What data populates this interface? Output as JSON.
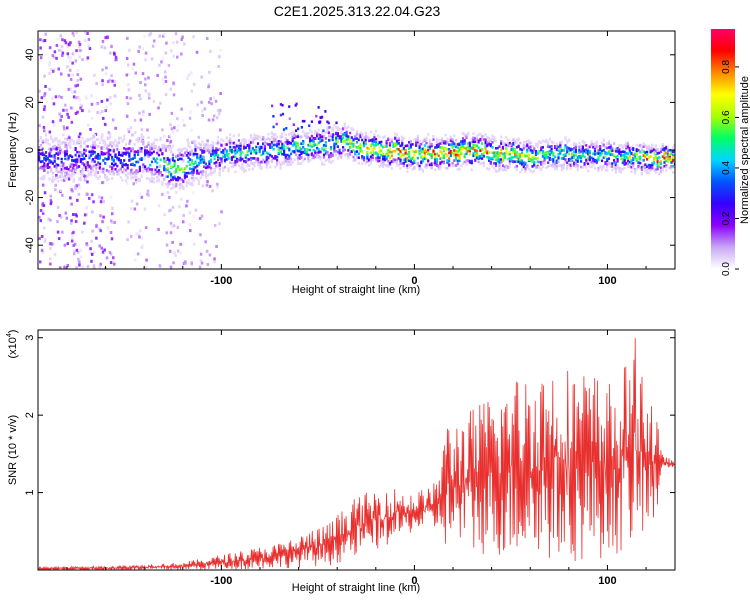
{
  "figure": {
    "title": "C2E1.2025.313.22.04.G23"
  },
  "chart_data": [
    {
      "type": "heatmap",
      "name": "spectrogram",
      "xlabel": "Height of straight line (km)",
      "ylabel": "Frequency (Hz)",
      "xlim": [
        -195,
        135
      ],
      "ylim": [
        -50,
        50
      ],
      "x_ticks": [
        -100,
        0,
        100
      ],
      "y_ticks": [
        -40,
        -20,
        0,
        20,
        40
      ],
      "ridge": [
        {
          "x": -190,
          "y": -3,
          "amp": 0.35
        },
        {
          "x": -170,
          "y": -3,
          "amp": 0.35
        },
        {
          "x": -150,
          "y": -3,
          "amp": 0.4
        },
        {
          "x": -135,
          "y": -3,
          "amp": 0.45
        },
        {
          "x": -125,
          "y": -8,
          "amp": 0.75
        },
        {
          "x": -110,
          "y": -3,
          "amp": 0.45
        },
        {
          "x": -95,
          "y": -1,
          "amp": 0.5
        },
        {
          "x": -80,
          "y": 0,
          "amp": 0.55
        },
        {
          "x": -65,
          "y": 1,
          "amp": 0.55
        },
        {
          "x": -50,
          "y": 2,
          "amp": 0.6
        },
        {
          "x": -38,
          "y": 4,
          "amp": 0.65
        },
        {
          "x": -25,
          "y": 1,
          "amp": 0.8
        },
        {
          "x": -10,
          "y": 0,
          "amp": 0.85
        },
        {
          "x": 0,
          "y": -1,
          "amp": 0.85
        },
        {
          "x": 15,
          "y": -1,
          "amp": 0.9
        },
        {
          "x": 30,
          "y": 0,
          "amp": 0.85
        },
        {
          "x": 45,
          "y": -1,
          "amp": 0.75
        },
        {
          "x": 60,
          "y": -2,
          "amp": 0.7
        },
        {
          "x": 75,
          "y": -1,
          "amp": 0.65
        },
        {
          "x": 90,
          "y": -2,
          "amp": 0.55
        },
        {
          "x": 105,
          "y": -2,
          "amp": 0.6
        },
        {
          "x": 120,
          "y": -3,
          "amp": 0.85
        },
        {
          "x": 133,
          "y": -3,
          "amp": 0.9
        }
      ],
      "colorbar": {
        "label": "Normalized spectral amplitude",
        "ticks": [
          0.0,
          0.2,
          0.4,
          0.6,
          0.8
        ],
        "tick_labels": [
          "0.0",
          "0.2",
          "0.4",
          "0.6",
          "0.8"
        ],
        "range": [
          0,
          0.95
        ],
        "stops": [
          "#ffffff",
          "#c9a7f6",
          "#8b00ff",
          "#3300ff",
          "#0055ff",
          "#00d5ff",
          "#00ff66",
          "#a8ff00",
          "#ffff00",
          "#ff8800",
          "#ff0000",
          "#ff0066"
        ]
      }
    },
    {
      "type": "line",
      "name": "snr",
      "xlabel": "Height of straight line (km)",
      "ylabel": "SNR (10 * v/v)",
      "scale_label": "(x10",
      "scale_exp": "4",
      "scale_close": ")",
      "xlim": [
        -195,
        135
      ],
      "ylim": [
        0,
        3.1
      ],
      "x_ticks": [
        -100,
        0,
        100
      ],
      "y_ticks": [
        1,
        2,
        3
      ],
      "color": "#e8302e",
      "envelope": [
        {
          "x": -195,
          "lo": 0.0,
          "hi": 0.04
        },
        {
          "x": -160,
          "lo": 0.0,
          "hi": 0.05
        },
        {
          "x": -120,
          "lo": 0.0,
          "hi": 0.1
        },
        {
          "x": -100,
          "lo": 0.0,
          "hi": 0.2
        },
        {
          "x": -70,
          "lo": 0.02,
          "hi": 0.35
        },
        {
          "x": -45,
          "lo": 0.05,
          "hi": 0.6
        },
        {
          "x": -30,
          "lo": 0.15,
          "hi": 0.95
        },
        {
          "x": -15,
          "lo": 0.3,
          "hi": 1.1
        },
        {
          "x": 0,
          "lo": 0.5,
          "hi": 1.0
        },
        {
          "x": 12,
          "lo": 0.5,
          "hi": 1.15
        },
        {
          "x": 15,
          "lo": 0.3,
          "hi": 1.9
        },
        {
          "x": 30,
          "lo": 0.2,
          "hi": 2.1
        },
        {
          "x": 50,
          "lo": 0.15,
          "hi": 2.5
        },
        {
          "x": 70,
          "lo": 0.1,
          "hi": 2.7
        },
        {
          "x": 90,
          "lo": 0.1,
          "hi": 2.6
        },
        {
          "x": 105,
          "lo": 0.2,
          "hi": 2.4
        },
        {
          "x": 115,
          "lo": 0.3,
          "hi": 3.05
        },
        {
          "x": 125,
          "lo": 0.5,
          "hi": 2.1
        },
        {
          "x": 128,
          "lo": 1.3,
          "hi": 1.5
        },
        {
          "x": 135,
          "lo": 1.33,
          "hi": 1.4
        }
      ]
    }
  ]
}
